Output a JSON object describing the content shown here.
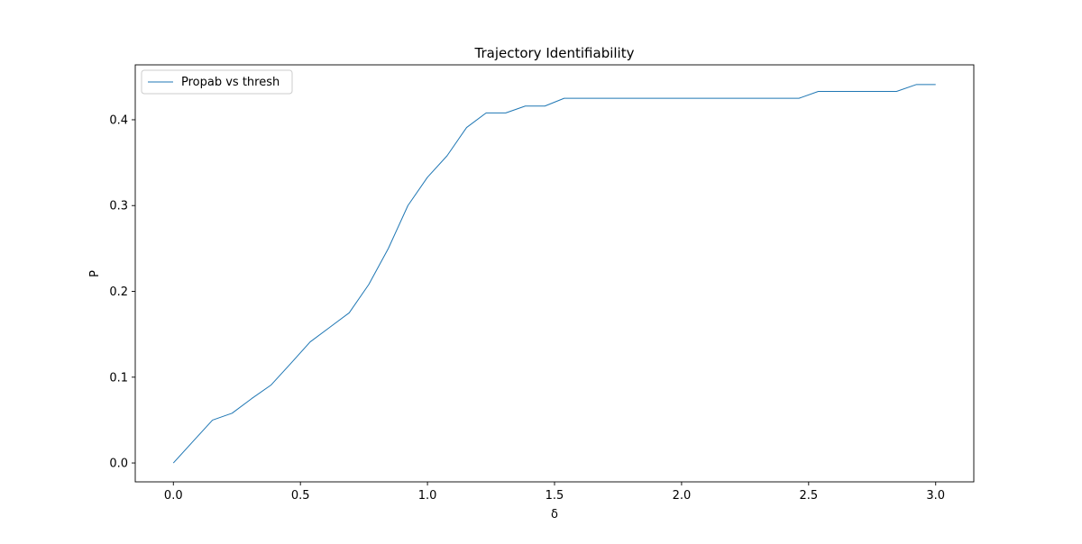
{
  "chart_data": {
    "type": "line",
    "title": "Trajectory Identifiability",
    "xlabel": "δ",
    "ylabel": "P",
    "xlim": [
      -0.15,
      3.15
    ],
    "ylim": [
      -0.022,
      0.464
    ],
    "grid": false,
    "legend_position": "top-left",
    "x_ticks": [
      0.0,
      0.5,
      1.0,
      1.5,
      2.0,
      2.5,
      3.0
    ],
    "x_tick_labels": [
      "0.0",
      "0.5",
      "1.0",
      "1.5",
      "2.0",
      "2.5",
      "3.0"
    ],
    "y_ticks": [
      0.0,
      0.1,
      0.2,
      0.3,
      0.4
    ],
    "y_tick_labels": [
      "0.0",
      "0.1",
      "0.2",
      "0.3",
      "0.4"
    ],
    "series": [
      {
        "name": "Propab vs thresh",
        "color": "#1f77b4",
        "x": [
          0.0,
          0.077,
          0.154,
          0.231,
          0.308,
          0.385,
          0.462,
          0.538,
          0.615,
          0.692,
          0.769,
          0.846,
          0.923,
          1.0,
          1.077,
          1.154,
          1.231,
          1.308,
          1.385,
          1.462,
          1.538,
          1.615,
          1.692,
          1.769,
          1.846,
          1.923,
          2.0,
          2.077,
          2.154,
          2.231,
          2.308,
          2.385,
          2.462,
          2.538,
          2.615,
          2.692,
          2.769,
          2.846,
          2.923,
          3.0
        ],
        "y": [
          0.0,
          0.025,
          0.05,
          0.058,
          0.075,
          0.091,
          0.116,
          0.141,
          0.158,
          0.175,
          0.208,
          0.25,
          0.3,
          0.333,
          0.358,
          0.391,
          0.408,
          0.408,
          0.416,
          0.416,
          0.425,
          0.425,
          0.425,
          0.425,
          0.425,
          0.425,
          0.425,
          0.425,
          0.425,
          0.425,
          0.425,
          0.425,
          0.425,
          0.433,
          0.433,
          0.433,
          0.433,
          0.433,
          0.441,
          0.441
        ]
      }
    ]
  }
}
